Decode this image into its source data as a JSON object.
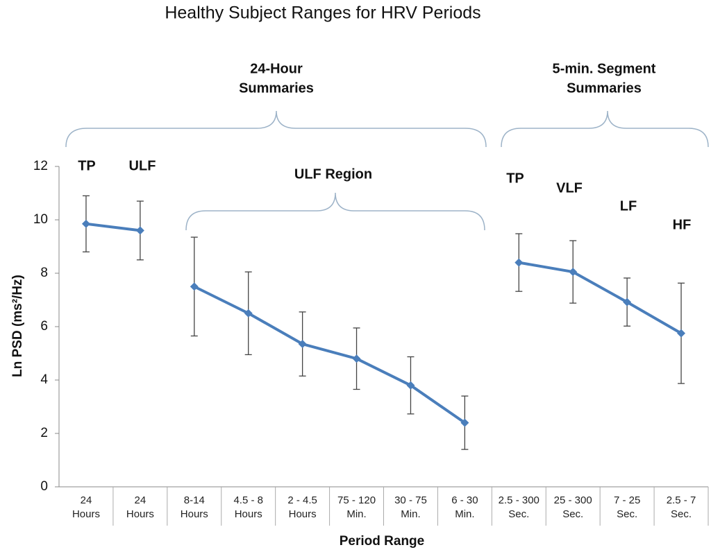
{
  "chart_data": {
    "type": "line",
    "title": "Healthy Subject Ranges for HRV Periods",
    "x_label": "Period Range",
    "y_label": "Ln PSD (ms²/Hz)",
    "categories": [
      [
        "24",
        "Hours"
      ],
      [
        "24",
        "Hours"
      ],
      [
        "8-14",
        "Hours"
      ],
      [
        "4.5 - 8",
        "Hours"
      ],
      [
        "2 - 4.5",
        "Hours"
      ],
      [
        "75 - 120",
        "Min."
      ],
      [
        "30 - 75",
        "Min."
      ],
      [
        "6 - 30",
        "Min."
      ],
      [
        "2.5 - 300",
        "Sec."
      ],
      [
        "25 - 300",
        "Sec."
      ],
      [
        "7 - 25",
        "Sec."
      ],
      [
        "2.5 - 7",
        "Sec."
      ]
    ],
    "series": [
      {
        "color": "#4a7ebb",
        "values": [
          9.85,
          9.6,
          null,
          null,
          null,
          null,
          null,
          null,
          null,
          null,
          null,
          null
        ],
        "errors": [
          1.05,
          1.1,
          null,
          null,
          null,
          null,
          null,
          null,
          null,
          null,
          null,
          null
        ]
      },
      {
        "color": "#4a7ebb",
        "values": [
          null,
          null,
          7.5,
          6.5,
          5.35,
          4.8,
          3.8,
          2.4,
          null,
          null,
          null,
          null
        ],
        "errors": [
          null,
          null,
          1.85,
          1.55,
          1.2,
          1.15,
          1.07,
          1.0,
          null,
          null,
          null,
          null
        ]
      },
      {
        "color": "#4a7ebb",
        "values": [
          null,
          null,
          null,
          null,
          null,
          null,
          null,
          null,
          8.4,
          8.05,
          6.92,
          5.75
        ],
        "errors": [
          null,
          null,
          null,
          null,
          null,
          null,
          null,
          null,
          1.08,
          1.17,
          0.9,
          1.88
        ]
      }
    ],
    "annotations": [
      "TP",
      "ULF",
      "TP",
      "VLF",
      "LF",
      "HF"
    ],
    "bracket_labels": [
      [
        "24-Hour",
        "Summaries"
      ],
      [
        "5-min. Segment",
        "Summaries"
      ],
      [
        "ULF Region"
      ]
    ],
    "ylim": [
      0,
      12
    ],
    "yticks": [
      0,
      2,
      4,
      6,
      8,
      10,
      12
    ]
  }
}
